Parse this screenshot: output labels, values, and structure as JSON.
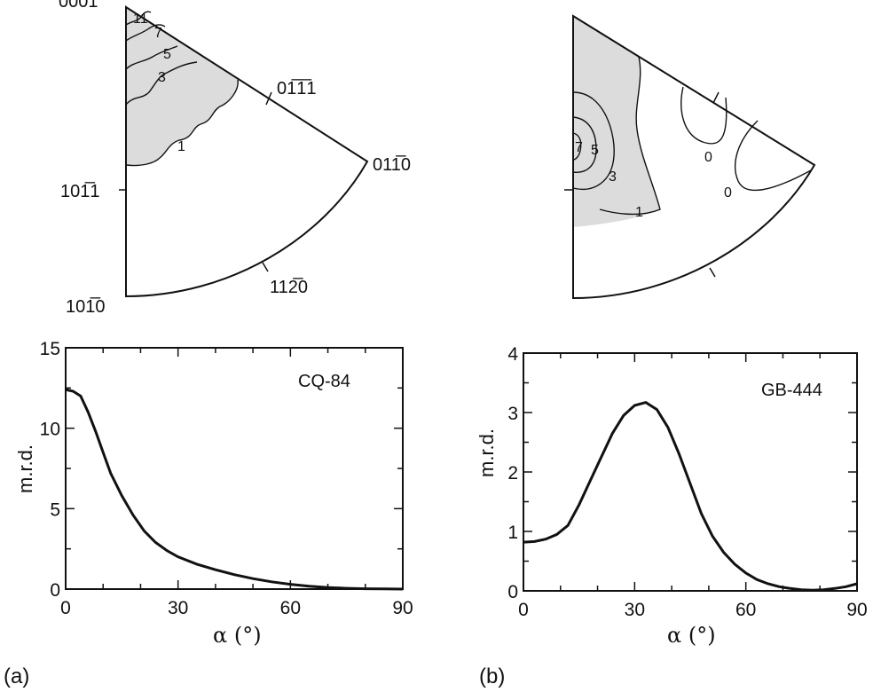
{
  "figure": {
    "panels": [
      {
        "panel_label": "(a)",
        "pole_figure": {
          "shading_color": "#dcdcdc",
          "corner_labels": [
            "0001",
            "01̅1̅1",
            "011̅0",
            "101̅1",
            "101̅0",
            "112̅0"
          ],
          "contour_labels": [
            "11",
            "7",
            "5",
            "3",
            "1"
          ]
        }
      },
      {
        "panel_label": "(b)",
        "pole_figure": {
          "shading_color": "#dcdcdc",
          "contour_labels": [
            "7",
            "5",
            "3",
            "1",
            "0",
            "0"
          ]
        }
      }
    ]
  },
  "chart_data": [
    {
      "type": "line",
      "sample_label": "CQ-84",
      "xlabel": "α (°)",
      "ylabel": "m.r.d.",
      "xlim": [
        0,
        90
      ],
      "ylim": [
        0,
        15
      ],
      "xticks": [
        0,
        30,
        60,
        90
      ],
      "yticks": [
        0,
        5,
        10,
        15
      ],
      "series": [
        {
          "x": [
            0,
            2,
            4,
            6,
            8,
            10,
            12,
            15,
            18,
            21,
            24,
            27,
            30,
            35,
            40,
            45,
            50,
            55,
            60,
            65,
            70,
            75,
            80,
            85,
            90
          ],
          "values": [
            12.4,
            12.3,
            12.0,
            11.0,
            9.8,
            8.5,
            7.2,
            5.8,
            4.6,
            3.6,
            2.9,
            2.4,
            2.0,
            1.55,
            1.2,
            0.9,
            0.65,
            0.45,
            0.3,
            0.18,
            0.1,
            0.05,
            0.02,
            0.01,
            0.0
          ]
        }
      ]
    },
    {
      "type": "line",
      "sample_label": "GB-444",
      "xlabel": "α (°)",
      "ylabel": "m.r.d.",
      "xlim": [
        0,
        90
      ],
      "ylim": [
        0,
        4
      ],
      "xticks": [
        0,
        30,
        60,
        90
      ],
      "yticks": [
        0,
        1,
        2,
        3,
        4
      ],
      "series": [
        {
          "x": [
            0,
            3,
            6,
            9,
            12,
            15,
            18,
            21,
            24,
            27,
            30,
            33,
            36,
            39,
            42,
            45,
            48,
            51,
            54,
            57,
            60,
            63,
            66,
            69,
            72,
            75,
            78,
            81,
            84,
            87,
            90
          ],
          "values": [
            0.82,
            0.83,
            0.87,
            0.95,
            1.1,
            1.45,
            1.85,
            2.25,
            2.65,
            2.95,
            3.12,
            3.17,
            3.05,
            2.75,
            2.3,
            1.8,
            1.3,
            0.92,
            0.65,
            0.45,
            0.3,
            0.19,
            0.12,
            0.07,
            0.04,
            0.02,
            0.01,
            0.02,
            0.04,
            0.07,
            0.12
          ]
        }
      ]
    }
  ]
}
